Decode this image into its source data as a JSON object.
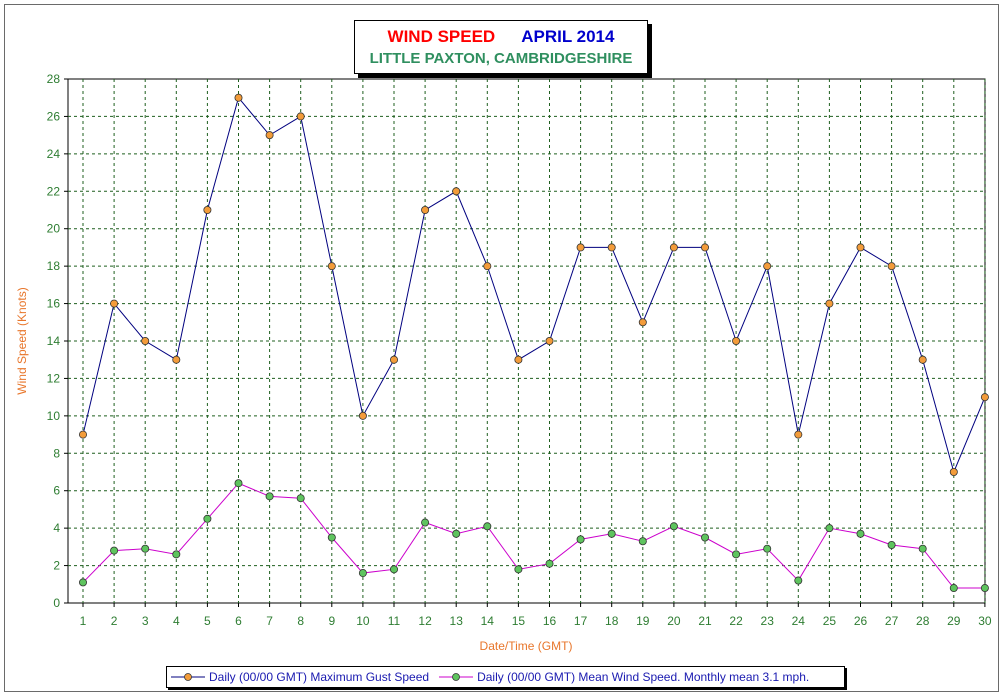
{
  "title": {
    "main": "WIND SPEED",
    "date": "APRIL 2014",
    "subtitle": "LITTLE PAXTON, CAMBRIDGESHIRE",
    "main_color": "#ff0000",
    "date_color": "#0000cc",
    "subtitle_color": "#2f8f5f"
  },
  "chart_data": {
    "type": "line",
    "xlabel": "Date/Time (GMT)",
    "ylabel": "Wind Speed (Knots)",
    "ylim": [
      0,
      28
    ],
    "ytick_step": 2,
    "grid": true,
    "legend_position": "bottom",
    "x": [
      1,
      2,
      3,
      4,
      5,
      6,
      7,
      8,
      9,
      10,
      11,
      12,
      13,
      14,
      15,
      16,
      17,
      18,
      19,
      20,
      21,
      22,
      23,
      24,
      25,
      26,
      27,
      28,
      29,
      30
    ],
    "series": [
      {
        "name": "Daily (00/00 GMT) Maximum Gust Speed",
        "line_color": "#00007f",
        "marker_color": "#f39c3a",
        "values": [
          9,
          16,
          14,
          13,
          21,
          27,
          25,
          26,
          18,
          10,
          13,
          21,
          22,
          18,
          13,
          14,
          19,
          19,
          15,
          19,
          19,
          14,
          18,
          9,
          16,
          19,
          18,
          13,
          7,
          11
        ]
      },
      {
        "name": "Daily (00/00 GMT) Mean Wind Speed. Monthly mean 3.1 mph.",
        "line_color": "#cc00cc",
        "marker_color": "#5ec45e",
        "values": [
          1.1,
          2.8,
          2.9,
          2.6,
          4.5,
          6.4,
          5.7,
          5.6,
          3.5,
          1.6,
          1.8,
          4.3,
          3.7,
          4.1,
          1.8,
          2.1,
          3.4,
          3.7,
          3.3,
          4.1,
          3.5,
          2.6,
          2.9,
          1.2,
          4.0,
          3.7,
          3.1,
          2.9,
          0.8,
          0.8
        ]
      }
    ]
  }
}
